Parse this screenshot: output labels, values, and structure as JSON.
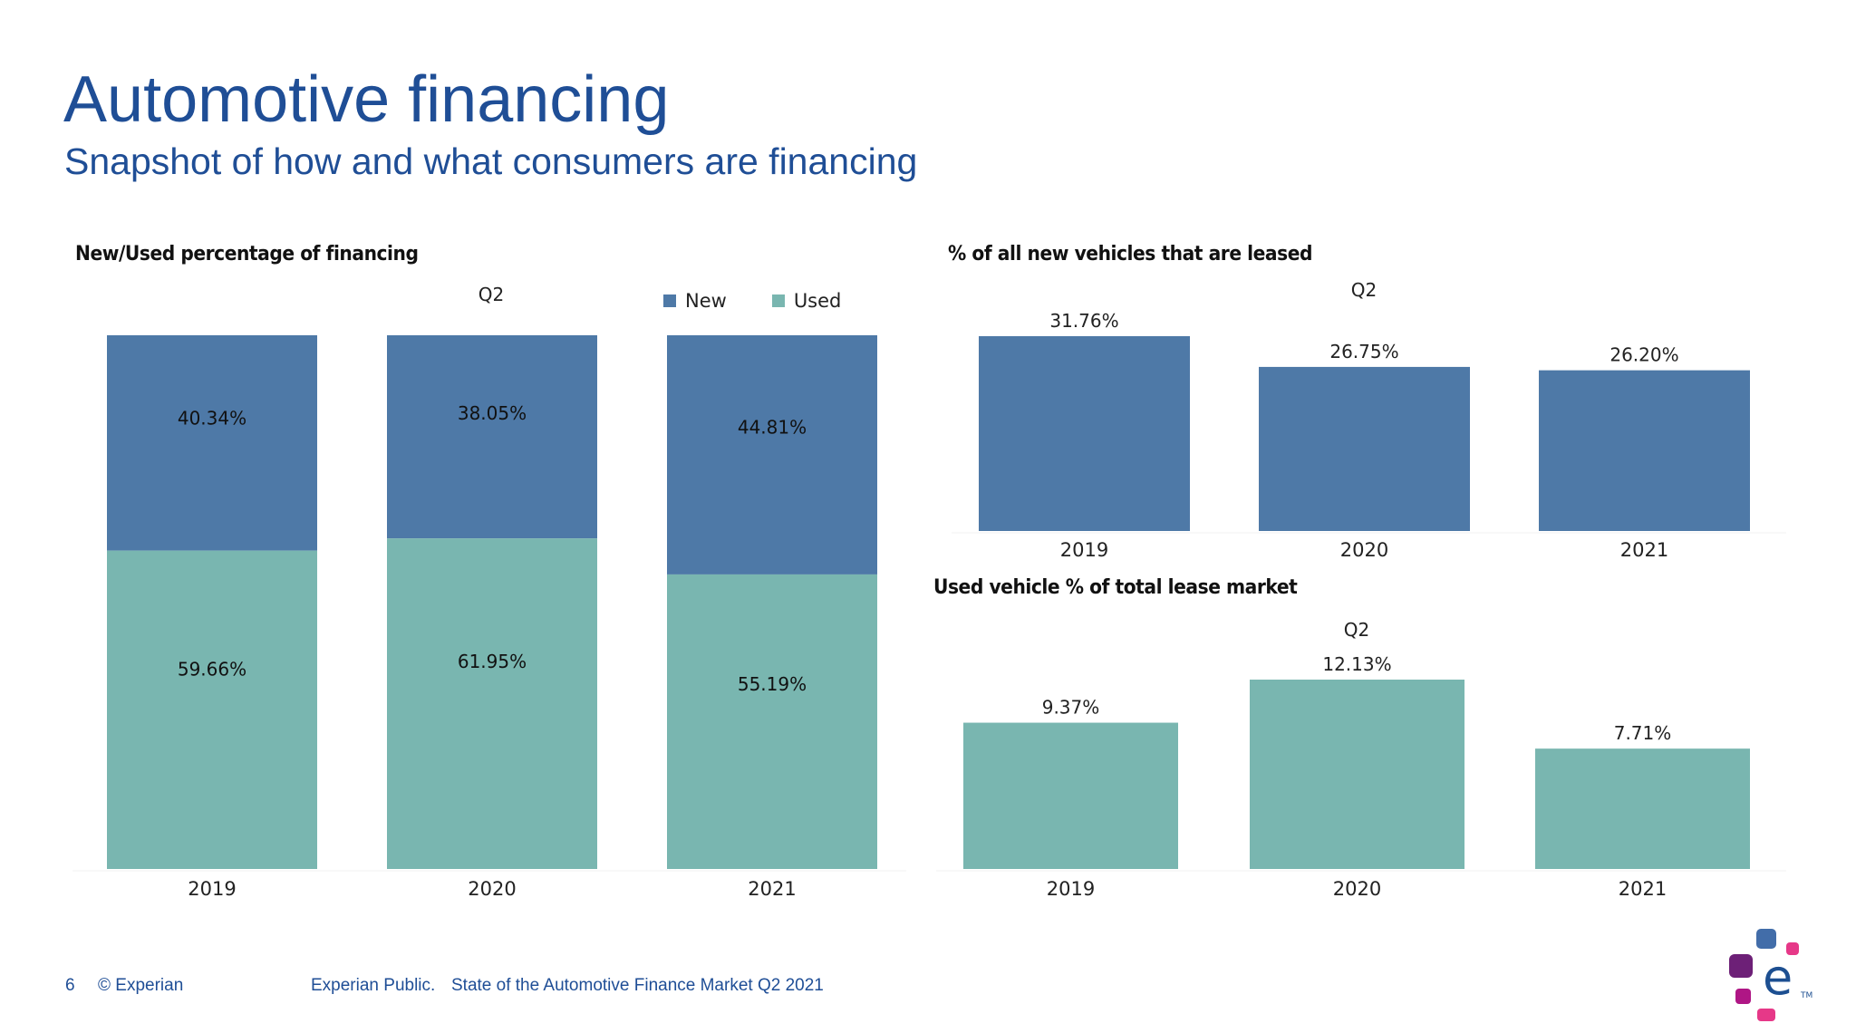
{
  "header": {
    "title": "Automotive financing",
    "subtitle": "Snapshot of how and what consumers are financing"
  },
  "colors": {
    "title": "#1f4e96",
    "new": "#4e79a7",
    "used": "#79b6b0",
    "text": "#222222"
  },
  "legend": {
    "items": [
      {
        "label": "New",
        "color": "#4e79a7"
      },
      {
        "label": "Used",
        "color": "#79b6b0"
      }
    ]
  },
  "chart_data": [
    {
      "id": "new-used",
      "type": "bar",
      "stacked": true,
      "title": "New/Used percentage of financing",
      "period_label": "Q2",
      "categories": [
        "2019",
        "2020",
        "2021"
      ],
      "series": [
        {
          "name": "Used",
          "values": [
            59.66,
            61.95,
            55.19
          ],
          "labels": [
            "59.66%",
            "61.95%",
            "55.19%"
          ]
        },
        {
          "name": "New",
          "values": [
            40.34,
            38.05,
            44.81
          ],
          "labels": [
            "40.34%",
            "38.05%",
            "44.81%"
          ]
        }
      ],
      "ylim": [
        0,
        100
      ],
      "legend": "top-right",
      "grid": false,
      "xlabel": "",
      "ylabel": ""
    },
    {
      "id": "new-leased",
      "type": "bar",
      "title": "% of all new vehicles that are leased",
      "period_label": "Q2",
      "categories": [
        "2019",
        "2020",
        "2021"
      ],
      "values": [
        31.76,
        26.75,
        26.2
      ],
      "labels": [
        "31.76%",
        "26.75%",
        "26.20%"
      ],
      "color": "#4e79a7",
      "ylim": [
        0,
        31.76
      ],
      "grid": false,
      "xlabel": "",
      "ylabel": ""
    },
    {
      "id": "used-lease",
      "type": "bar",
      "title": "Used vehicle % of total lease market",
      "period_label": "Q2",
      "categories": [
        "2019",
        "2020",
        "2021"
      ],
      "values": [
        9.37,
        12.13,
        7.71
      ],
      "labels": [
        "9.37%",
        "12.13%",
        "7.71%"
      ],
      "color": "#79b6b0",
      "ylim": [
        0,
        12.13
      ],
      "grid": false,
      "xlabel": "",
      "ylabel": ""
    }
  ],
  "footer": {
    "page_number": "6",
    "copyright": "© Experian",
    "classification": "Experian Public.",
    "report_name": "State of the Automotive Finance Market Q2 2021"
  },
  "logo": {
    "name": "experian-logo",
    "letter": "e",
    "trademark": "TM"
  }
}
